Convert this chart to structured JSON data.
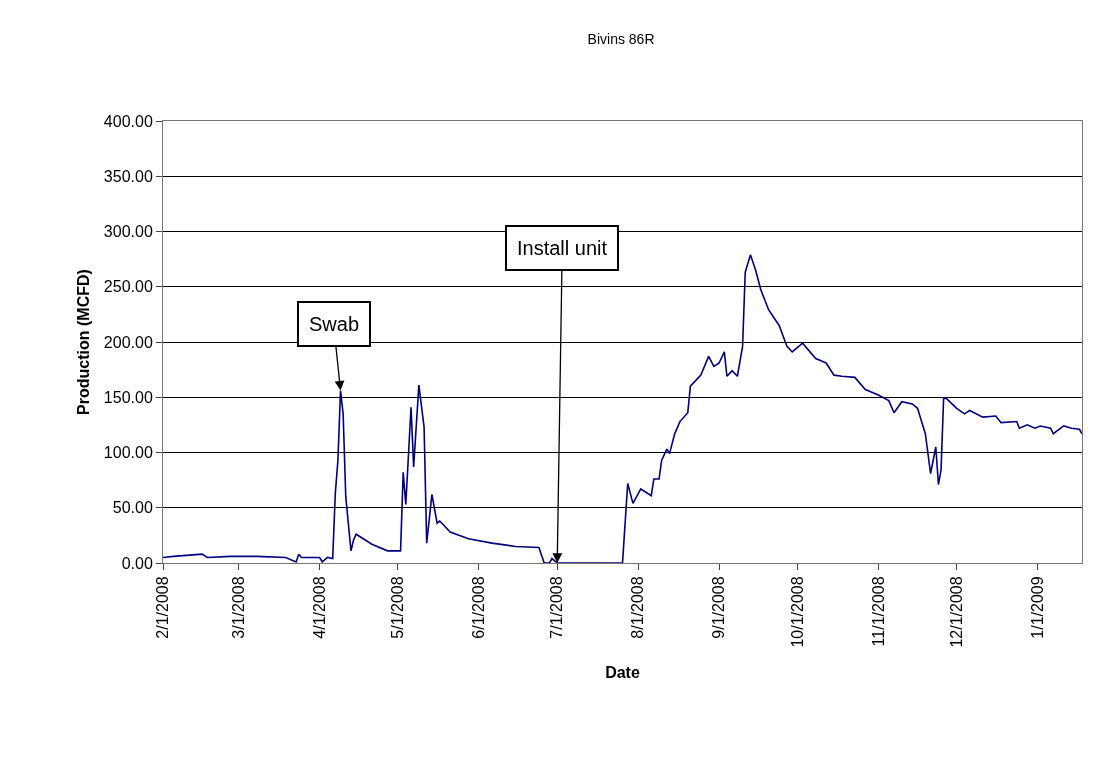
{
  "chart_data": {
    "type": "line",
    "title": "Bivins 86R",
    "xlabel": "Date",
    "ylabel": "Production (MCFD)",
    "x": [
      "2008-02-01",
      "2008-02-05",
      "2008-02-16",
      "2008-02-18",
      "2008-02-27",
      "2008-03-08",
      "2008-03-19",
      "2008-03-23",
      "2008-03-24",
      "2008-03-25",
      "2008-04-01",
      "2008-04-02",
      "2008-04-04",
      "2008-04-06",
      "2008-04-07",
      "2008-04-08",
      "2008-04-09",
      "2008-04-10",
      "2008-04-11",
      "2008-04-13",
      "2008-04-14",
      "2008-04-15",
      "2008-04-21",
      "2008-04-27",
      "2008-05-02",
      "2008-05-03",
      "2008-05-04",
      "2008-05-06",
      "2008-05-07",
      "2008-05-09",
      "2008-05-11",
      "2008-05-12",
      "2008-05-14",
      "2008-05-16",
      "2008-05-17",
      "2008-05-21",
      "2008-05-28",
      "2008-06-06",
      "2008-06-15",
      "2008-06-24",
      "2008-06-26",
      "2008-06-28",
      "2008-06-29",
      "2008-07-01",
      "2008-07-26",
      "2008-07-28",
      "2008-07-30",
      "2008-08-02",
      "2008-08-06",
      "2008-08-07",
      "2008-08-09",
      "2008-08-10",
      "2008-08-12",
      "2008-08-13",
      "2008-08-15",
      "2008-08-17",
      "2008-08-20",
      "2008-08-21",
      "2008-08-25",
      "2008-08-28",
      "2008-08-30",
      "2008-09-01",
      "2008-09-03",
      "2008-09-04",
      "2008-09-06",
      "2008-09-08",
      "2008-09-10",
      "2008-09-11",
      "2008-09-13",
      "2008-09-15",
      "2008-09-17",
      "2008-09-20",
      "2008-09-24",
      "2008-09-27",
      "2008-09-29",
      "2008-10-03",
      "2008-10-08",
      "2008-10-12",
      "2008-10-15",
      "2008-10-18",
      "2008-10-23",
      "2008-10-27",
      "2008-11-01",
      "2008-11-05",
      "2008-11-07",
      "2008-11-10",
      "2008-11-14",
      "2008-11-16",
      "2008-11-19",
      "2008-11-21",
      "2008-11-23",
      "2008-11-24",
      "2008-11-25",
      "2008-11-26",
      "2008-11-27",
      "2008-12-01",
      "2008-12-04",
      "2008-12-06",
      "2008-12-11",
      "2008-12-16",
      "2008-12-18",
      "2008-12-24",
      "2008-12-25",
      "2008-12-28",
      "2008-12-31",
      "2009-01-02",
      "2009-01-06",
      "2009-01-07",
      "2009-01-11",
      "2009-01-14",
      "2009-01-17",
      "2009-01-18"
    ],
    "series": [
      {
        "color": "#000080",
        "values": [
          5,
          6,
          8,
          5,
          6,
          6,
          5,
          1,
          8,
          5,
          5,
          1,
          5,
          4,
          63,
          93,
          156,
          135,
          60,
          11,
          21,
          26,
          17,
          11,
          11,
          82,
          53,
          141,
          87,
          161,
          123,
          18,
          62,
          36,
          38,
          28,
          22,
          18,
          15,
          14,
          0,
          0,
          4,
          0,
          0,
          72,
          54,
          67,
          61,
          76,
          76,
          93,
          103,
          99,
          117,
          128,
          136,
          160,
          170,
          187,
          178,
          181,
          191,
          169,
          174,
          169,
          196,
          263,
          279,
          265,
          247,
          229,
          215,
          196,
          191,
          199,
          185,
          181,
          170,
          169,
          168,
          157,
          152,
          147,
          136,
          146,
          144,
          140,
          117,
          81,
          105,
          71,
          84,
          149,
          149,
          140,
          135,
          138,
          132,
          133,
          127,
          128,
          122,
          125,
          122,
          124,
          122,
          117,
          124,
          122,
          121,
          117
        ]
      }
    ],
    "xlim": [
      "2008-02-01",
      "2009-01-18"
    ],
    "xticks": [
      {
        "value": "2008-02-01",
        "label": "2/1/2008"
      },
      {
        "value": "2008-03-01",
        "label": "3/1/2008"
      },
      {
        "value": "2008-04-01",
        "label": "4/1/2008"
      },
      {
        "value": "2008-05-01",
        "label": "5/1/2008"
      },
      {
        "value": "2008-06-01",
        "label": "6/1/2008"
      },
      {
        "value": "2008-07-01",
        "label": "7/1/2008"
      },
      {
        "value": "2008-08-01",
        "label": "8/1/2008"
      },
      {
        "value": "2008-09-01",
        "label": "9/1/2008"
      },
      {
        "value": "2008-10-01",
        "label": "10/1/2008"
      },
      {
        "value": "2008-11-01",
        "label": "11/1/2008"
      },
      {
        "value": "2008-12-01",
        "label": "12/1/2008"
      },
      {
        "value": "2009-01-01",
        "label": "1/1/2009"
      }
    ],
    "ylim": [
      0,
      400
    ],
    "yticks": [
      {
        "value": 0,
        "label": "0.00"
      },
      {
        "value": 50,
        "label": "50.00"
      },
      {
        "value": 100,
        "label": "100.00"
      },
      {
        "value": 150,
        "label": "150.00"
      },
      {
        "value": 200,
        "label": "200.00"
      },
      {
        "value": 250,
        "label": "250.00"
      },
      {
        "value": 300,
        "label": "300.00"
      },
      {
        "value": 350,
        "label": "350.00"
      },
      {
        "value": 400,
        "label": "400.00"
      }
    ],
    "grid": "y",
    "marker": "none",
    "line_style": "solid",
    "annotations": [
      {
        "text": "Swab",
        "x": "2008-04-09",
        "y": 156
      },
      {
        "text": "Install unit",
        "x": "2008-07-01",
        "y": 0
      }
    ]
  }
}
